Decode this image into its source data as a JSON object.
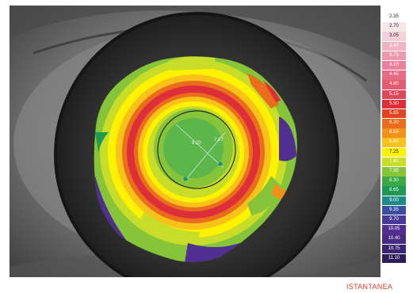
{
  "map": {
    "center_left_value": "8.20",
    "center_right_value": "7.87"
  },
  "legend": {
    "items": [
      {
        "label": "2.35",
        "color": "#ffffff",
        "text": "#222222"
      },
      {
        "label": "2.70",
        "color": "#f7e6ea",
        "text": "#222222"
      },
      {
        "label": "3.05",
        "color": "#f3d0da",
        "text": "#222222"
      },
      {
        "label": "3.40",
        "color": "#efb3c3",
        "text": "#ffffff"
      },
      {
        "label": "3.75",
        "color": "#eb99ad",
        "text": "#ffffff"
      },
      {
        "label": "4.10",
        "color": "#e9829a",
        "text": "#ffffff"
      },
      {
        "label": "4.45",
        "color": "#e66c86",
        "text": "#ffffff"
      },
      {
        "label": "4.80",
        "color": "#e35a71",
        "text": "#ffffff"
      },
      {
        "label": "5.15",
        "color": "#e0465a",
        "text": "#ffffff"
      },
      {
        "label": "5.50",
        "color": "#dd2f3a",
        "text": "#ffffff"
      },
      {
        "label": "5.85",
        "color": "#e04422",
        "text": "#ffffff"
      },
      {
        "label": "6.20",
        "color": "#ea6d1c",
        "text": "#ffffff"
      },
      {
        "label": "6.55",
        "color": "#f2921a",
        "text": "#ffffff"
      },
      {
        "label": "6.90",
        "color": "#f8c21a",
        "text": "#ffffff"
      },
      {
        "label": "7.25",
        "color": "#fff200",
        "text": "#222222"
      },
      {
        "label": "7.60",
        "color": "#c8dc2a",
        "text": "#ffffff"
      },
      {
        "label": "7.95",
        "color": "#86c43a",
        "text": "#ffffff"
      },
      {
        "label": "8.30",
        "color": "#3aa845",
        "text": "#ffffff"
      },
      {
        "label": "8.65",
        "color": "#1f9a55",
        "text": "#ffffff"
      },
      {
        "label": "9.00",
        "color": "#1e8a8a",
        "text": "#ffffff"
      },
      {
        "label": "9.35",
        "color": "#3b4f9e",
        "text": "#ffffff"
      },
      {
        "label": "9.70",
        "color": "#4a3a98",
        "text": "#ffffff"
      },
      {
        "label": "10.05",
        "color": "#512f90",
        "text": "#ffffff"
      },
      {
        "label": "10.40",
        "color": "#482a80",
        "text": "#ffffff"
      },
      {
        "label": "10.75",
        "color": "#3c2570",
        "text": "#ffffff"
      },
      {
        "label": "11.10",
        "color": "#2e1e58",
        "text": "#ffffff"
      }
    ]
  },
  "footer": {
    "mode_label": "ISTANTANEA"
  }
}
